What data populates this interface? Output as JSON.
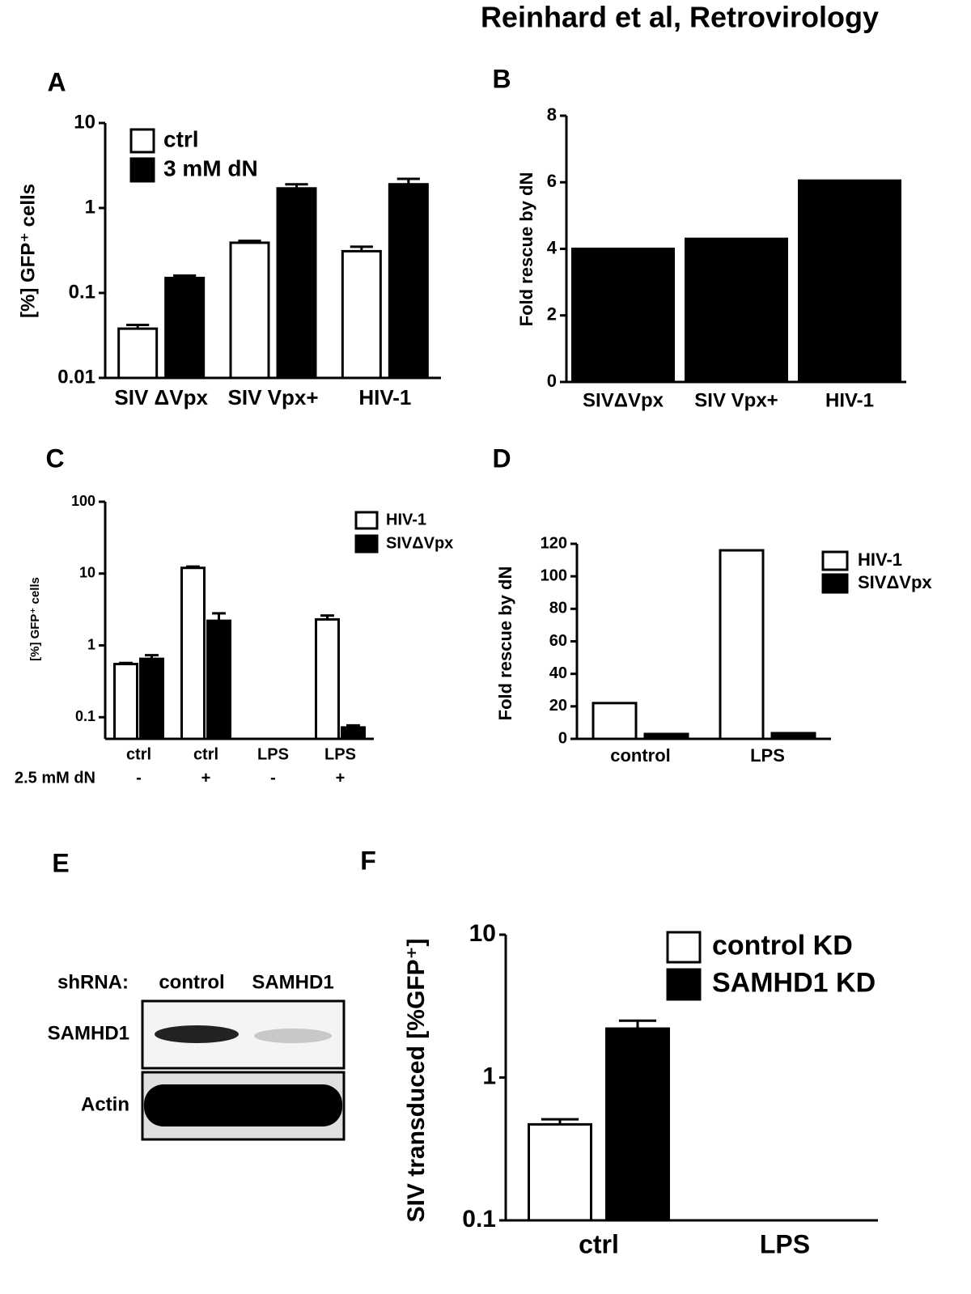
{
  "header": {
    "title": "Reinhard et al, Retrovirology"
  },
  "panel_letters": [
    "A",
    "B",
    "C",
    "D",
    "E",
    "F"
  ],
  "blot": {
    "row_header": "shRNA:",
    "lanes": [
      "control",
      "SAMHD1"
    ],
    "rows": [
      "SAMHD1",
      "Actin"
    ]
  },
  "chart_data": [
    {
      "type": "bar",
      "panel": "A",
      "log_scale": true,
      "ylabel": "[%] GFP⁺ cells",
      "categories": [
        "SIV ΔVpx",
        "SIV Vpx+",
        "HIV-1"
      ],
      "series": [
        {
          "name": "ctrl",
          "color": "#ffffff",
          "values": [
            0.038,
            0.39,
            0.31
          ],
          "errors": [
            0.004,
            0.02,
            0.04
          ]
        },
        {
          "name": "3 mM dN",
          "color": "#000000",
          "values": [
            0.15,
            1.7,
            1.9
          ],
          "errors": [
            0.01,
            0.2,
            0.3
          ]
        }
      ],
      "ylim": [
        0.01,
        10
      ],
      "yticks": [
        0.01,
        0.1,
        1,
        10
      ],
      "legend": "upper left"
    },
    {
      "type": "bar",
      "panel": "B",
      "ylabel": "Fold rescue by dN",
      "categories": [
        "SIVΔVpx",
        "SIV Vpx+",
        "HIV-1"
      ],
      "values": [
        4.0,
        4.3,
        6.05
      ],
      "color": "#000000",
      "ylim": [
        0,
        8
      ],
      "yticks": [
        0,
        2,
        4,
        6,
        8
      ]
    },
    {
      "type": "bar",
      "panel": "C",
      "log_scale": true,
      "ylabel": "[%] GFP⁺ cells",
      "categories": [
        "ctrl",
        "ctrl",
        "LPS",
        "LPS"
      ],
      "x_sublabel_title": "2.5 mM dN",
      "x_sublabels": [
        "-",
        "+",
        "-",
        "+"
      ],
      "series": [
        {
          "name": "HIV-1",
          "color": "#ffffff",
          "values": [
            0.55,
            12,
            null,
            2.3
          ],
          "errors": [
            0.02,
            0.5,
            null,
            0.3
          ]
        },
        {
          "name": "SIVΔVpx",
          "color": "#000000",
          "values": [
            0.65,
            2.2,
            null,
            0.072
          ],
          "errors": [
            0.08,
            0.6,
            null,
            0.005
          ]
        }
      ],
      "ylim": [
        0.05,
        100
      ],
      "yticks": [
        0.1,
        1,
        10,
        100
      ],
      "legend": "upper right"
    },
    {
      "type": "bar",
      "panel": "D",
      "ylabel": "Fold rescue by dN",
      "categories": [
        "control",
        "LPS"
      ],
      "series": [
        {
          "name": "HIV-1",
          "color": "#ffffff",
          "values": [
            22,
            116
          ]
        },
        {
          "name": "SIVΔVpx",
          "color": "#000000",
          "values": [
            3,
            3.5
          ]
        }
      ],
      "ylim": [
        0,
        120
      ],
      "yticks": [
        0,
        20,
        40,
        60,
        80,
        100,
        120
      ],
      "legend": "upper right"
    },
    {
      "type": "bar",
      "panel": "F",
      "log_scale": true,
      "ylabel": "SIV transduced [%GFP⁺]",
      "categories": [
        "ctrl",
        "LPS"
      ],
      "series": [
        {
          "name": "control KD",
          "color": "#ffffff",
          "values": [
            0.47,
            null
          ],
          "errors": [
            0.04,
            null
          ]
        },
        {
          "name": "SAMHD1 KD",
          "color": "#000000",
          "values": [
            2.2,
            null
          ],
          "errors": [
            0.3,
            null
          ]
        }
      ],
      "ylim": [
        0.1,
        10
      ],
      "yticks": [
        0.1,
        1,
        10
      ],
      "legend": "upper right"
    }
  ]
}
